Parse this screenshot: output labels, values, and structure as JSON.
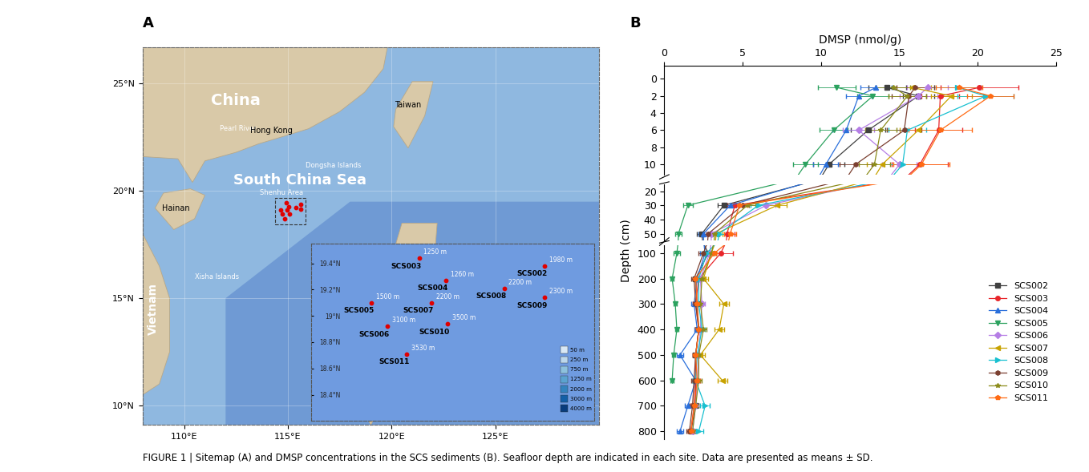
{
  "caption": "FIGURE 1 | Sitemap (A) and DMSP concentrations in the SCS sediments (B). Seafloor depth are indicated in each site. Data are presented as means ± SD.",
  "map": {
    "label": "A",
    "xlim": [
      108,
      130
    ],
    "ylim": [
      9.1,
      26.7
    ],
    "xticks": [
      {
        "value": 110,
        "label": "110°E"
      },
      {
        "value": 115,
        "label": "115°E"
      },
      {
        "value": 120,
        "label": "120°E"
      },
      {
        "value": 125,
        "label": "125°E"
      }
    ],
    "yticks": [
      {
        "value": 10,
        "label": "10°N"
      },
      {
        "value": 15,
        "label": "15°N"
      },
      {
        "value": 20,
        "label": "20°N"
      },
      {
        "value": 25,
        "label": "25°N"
      }
    ],
    "places": [
      "China",
      "Pearl River",
      "Hong Kong",
      "Taiwan",
      "Dongsha Islands",
      "South China Sea",
      "Shenhu Area",
      "Hainan",
      "Vietnam",
      "Xisha Islands"
    ],
    "sites": [
      {
        "name": "SCS002",
        "lon": 115.62,
        "lat": 19.38,
        "depth_label": "1980 m"
      },
      {
        "name": "SCS003",
        "lon": 114.91,
        "lat": 19.44,
        "depth_label": "1250 m"
      },
      {
        "name": "SCS004",
        "lon": 115.06,
        "lat": 19.27,
        "depth_label": "1260 m"
      },
      {
        "name": "SCS005",
        "lon": 114.64,
        "lat": 19.1,
        "depth_label": "1500 m"
      },
      {
        "name": "SCS006",
        "lon": 114.73,
        "lat": 18.92,
        "depth_label": "3100 m"
      },
      {
        "name": "SCS007",
        "lon": 114.98,
        "lat": 19.1,
        "depth_label": "2200 m"
      },
      {
        "name": "SCS008",
        "lon": 115.39,
        "lat": 19.21,
        "depth_label": "2200 m"
      },
      {
        "name": "SCS009",
        "lon": 115.62,
        "lat": 19.14,
        "depth_label": "2300 m"
      },
      {
        "name": "SCS010",
        "lon": 115.07,
        "lat": 18.94,
        "depth_label": "3500 m"
      },
      {
        "name": "SCS011",
        "lon": 114.84,
        "lat": 18.71,
        "depth_label": "3530 m"
      }
    ],
    "inset": {
      "xlim": [
        114.3,
        115.9
      ],
      "ylim": [
        18.2,
        19.55
      ],
      "yticks": [
        {
          "value": 18.4,
          "label": "18.4°N"
        },
        {
          "value": 18.6,
          "label": "18.6°N"
        },
        {
          "value": 18.8,
          "label": "18.8°N"
        },
        {
          "value": 19.0,
          "label": "19°N"
        },
        {
          "value": 19.2,
          "label": "19.2°N"
        },
        {
          "value": 19.4,
          "label": "19.4°N"
        }
      ],
      "depth_legend": [
        "50 m",
        "250 m",
        "750 m",
        "1250 m",
        "2000 m",
        "3000 m",
        "4000 m"
      ]
    }
  },
  "chart_data": {
    "type": "line",
    "label": "B",
    "xlabel": "DMSP (nmol/g)",
    "ylabel": "Depth (cm)",
    "xlim": [
      0,
      25
    ],
    "xticks": [
      0,
      5,
      10,
      15,
      20,
      25
    ],
    "segments": [
      {
        "ylim": [
          -1.5,
          11.2
        ],
        "yticks": [
          0,
          2,
          4,
          6,
          8,
          10
        ]
      },
      {
        "ylim": [
          15,
          55
        ],
        "yticks": [
          20,
          30,
          40,
          50
        ]
      },
      {
        "ylim": [
          70,
          830
        ],
        "yticks": [
          100,
          200,
          300,
          400,
          500,
          600,
          700,
          800
        ]
      }
    ],
    "legend": "center right",
    "y": [
      1,
      2,
      6,
      10,
      30,
      50,
      100,
      200,
      300,
      400,
      500,
      600,
      700,
      800
    ],
    "series": [
      {
        "name": "SCS002",
        "color": "#404040",
        "marker": "square",
        "values": [
          14.2,
          16.2,
          13.0,
          10.5,
          3.8,
          2.4,
          2.8,
          2.0,
          2.1,
          2.2,
          2.0,
          2.0,
          2.0,
          1.7
        ],
        "sd": [
          1.2,
          1.0,
          1.1,
          1.0,
          0.4,
          0.3,
          0.3,
          0.2,
          0.2,
          0.2,
          0.2,
          0.2,
          0.2,
          0.2
        ]
      },
      {
        "name": "SCS003",
        "color": "#e8262b",
        "marker": "circle",
        "values": [
          20.1,
          17.6,
          17.5,
          16.3,
          4.5,
          4.0,
          3.6,
          2.2,
          2.0,
          2.2,
          2.0,
          2.0,
          1.9,
          1.7
        ],
        "sd": [
          2.5,
          1.2,
          1.5,
          1.8,
          0.5,
          0.5,
          0.8,
          0.3,
          0.2,
          0.2,
          0.2,
          0.2,
          0.2,
          0.2
        ]
      },
      {
        "name": "SCS004",
        "color": "#2a6fdb",
        "marker": "triangle_up",
        "values": [
          13.5,
          12.4,
          11.6,
          10.3,
          4.2,
          2.5,
          2.6,
          2.1,
          1.9,
          2.1,
          1.0,
          2.0,
          1.5,
          1.0
        ],
        "sd": [
          1.0,
          0.8,
          0.9,
          0.8,
          0.4,
          0.3,
          0.3,
          0.2,
          0.2,
          0.2,
          0.2,
          0.2,
          0.2,
          0.2
        ]
      },
      {
        "name": "SCS005",
        "color": "#2ca25f",
        "marker": "triangle_down",
        "values": [
          11.0,
          13.3,
          10.8,
          9.0,
          1.5,
          0.9,
          0.8,
          0.5,
          0.7,
          0.8,
          0.6,
          0.5,
          null,
          null
        ],
        "sd": [
          1.2,
          1.0,
          0.9,
          0.8,
          0.3,
          0.2,
          0.2,
          0.1,
          0.1,
          0.1,
          0.1,
          0.1,
          null,
          null
        ]
      },
      {
        "name": "SCS006",
        "color": "#b57ee5",
        "marker": "diamond",
        "values": [
          16.8,
          16.2,
          12.4,
          15.0,
          6.5,
          3.0,
          2.9,
          2.3,
          2.4,
          2.3,
          2.2,
          2.1,
          2.0,
          1.8
        ],
        "sd": [
          1.3,
          1.2,
          1.0,
          1.1,
          0.6,
          0.3,
          0.3,
          0.2,
          0.2,
          0.2,
          0.2,
          0.2,
          0.2,
          0.2
        ]
      },
      {
        "name": "SCS007",
        "color": "#c8a200",
        "marker": "triangle_left",
        "values": [
          15.8,
          18.3,
          16.2,
          13.9,
          7.2,
          3.3,
          3.0,
          2.5,
          3.8,
          3.5,
          2.3,
          3.7,
          null,
          null
        ],
        "sd": [
          1.2,
          1.3,
          1.2,
          1.0,
          0.6,
          0.4,
          0.3,
          0.3,
          0.3,
          0.3,
          0.3,
          0.3,
          null,
          null
        ]
      },
      {
        "name": "SCS008",
        "color": "#18c0d0",
        "marker": "triangle_right",
        "values": [
          18.7,
          20.5,
          15.5,
          15.2,
          6.0,
          3.5,
          2.7,
          2.2,
          2.2,
          2.4,
          2.1,
          2.0,
          2.6,
          2.2
        ],
        "sd": [
          1.5,
          1.8,
          1.2,
          1.2,
          0.5,
          0.4,
          0.3,
          0.2,
          0.2,
          0.2,
          0.2,
          0.2,
          0.3,
          0.3
        ]
      },
      {
        "name": "SCS009",
        "color": "#7b3f30",
        "marker": "hexagon",
        "values": [
          16.0,
          15.6,
          15.3,
          12.2,
          5.0,
          2.8,
          2.5,
          1.9,
          2.0,
          2.2,
          2.0,
          1.9,
          1.8,
          1.6
        ],
        "sd": [
          1.2,
          1.1,
          1.1,
          1.0,
          0.4,
          0.3,
          0.3,
          0.2,
          0.2,
          0.2,
          0.2,
          0.2,
          0.2,
          0.2
        ]
      },
      {
        "name": "SCS010",
        "color": "#8b8b1a",
        "marker": "star",
        "values": [
          14.6,
          15.5,
          13.8,
          13.4,
          5.3,
          3.2,
          3.0,
          2.4,
          2.3,
          2.5,
          2.2,
          2.2,
          2.0,
          1.8
        ],
        "sd": [
          1.1,
          1.2,
          1.0,
          1.0,
          0.5,
          0.3,
          0.3,
          0.2,
          0.2,
          0.2,
          0.2,
          0.2,
          0.2,
          0.2
        ]
      },
      {
        "name": "SCS011",
        "color": "#ff6a13",
        "marker": "pentagon",
        "values": [
          18.8,
          20.8,
          17.6,
          16.4,
          4.8,
          4.2,
          3.2,
          2.0,
          2.1,
          2.2,
          2.0,
          2.1,
          1.9,
          1.7
        ],
        "sd": [
          1.5,
          1.5,
          2.0,
          1.8,
          0.5,
          0.4,
          0.4,
          0.2,
          0.2,
          0.2,
          0.2,
          0.2,
          0.2,
          0.2
        ]
      }
    ]
  }
}
